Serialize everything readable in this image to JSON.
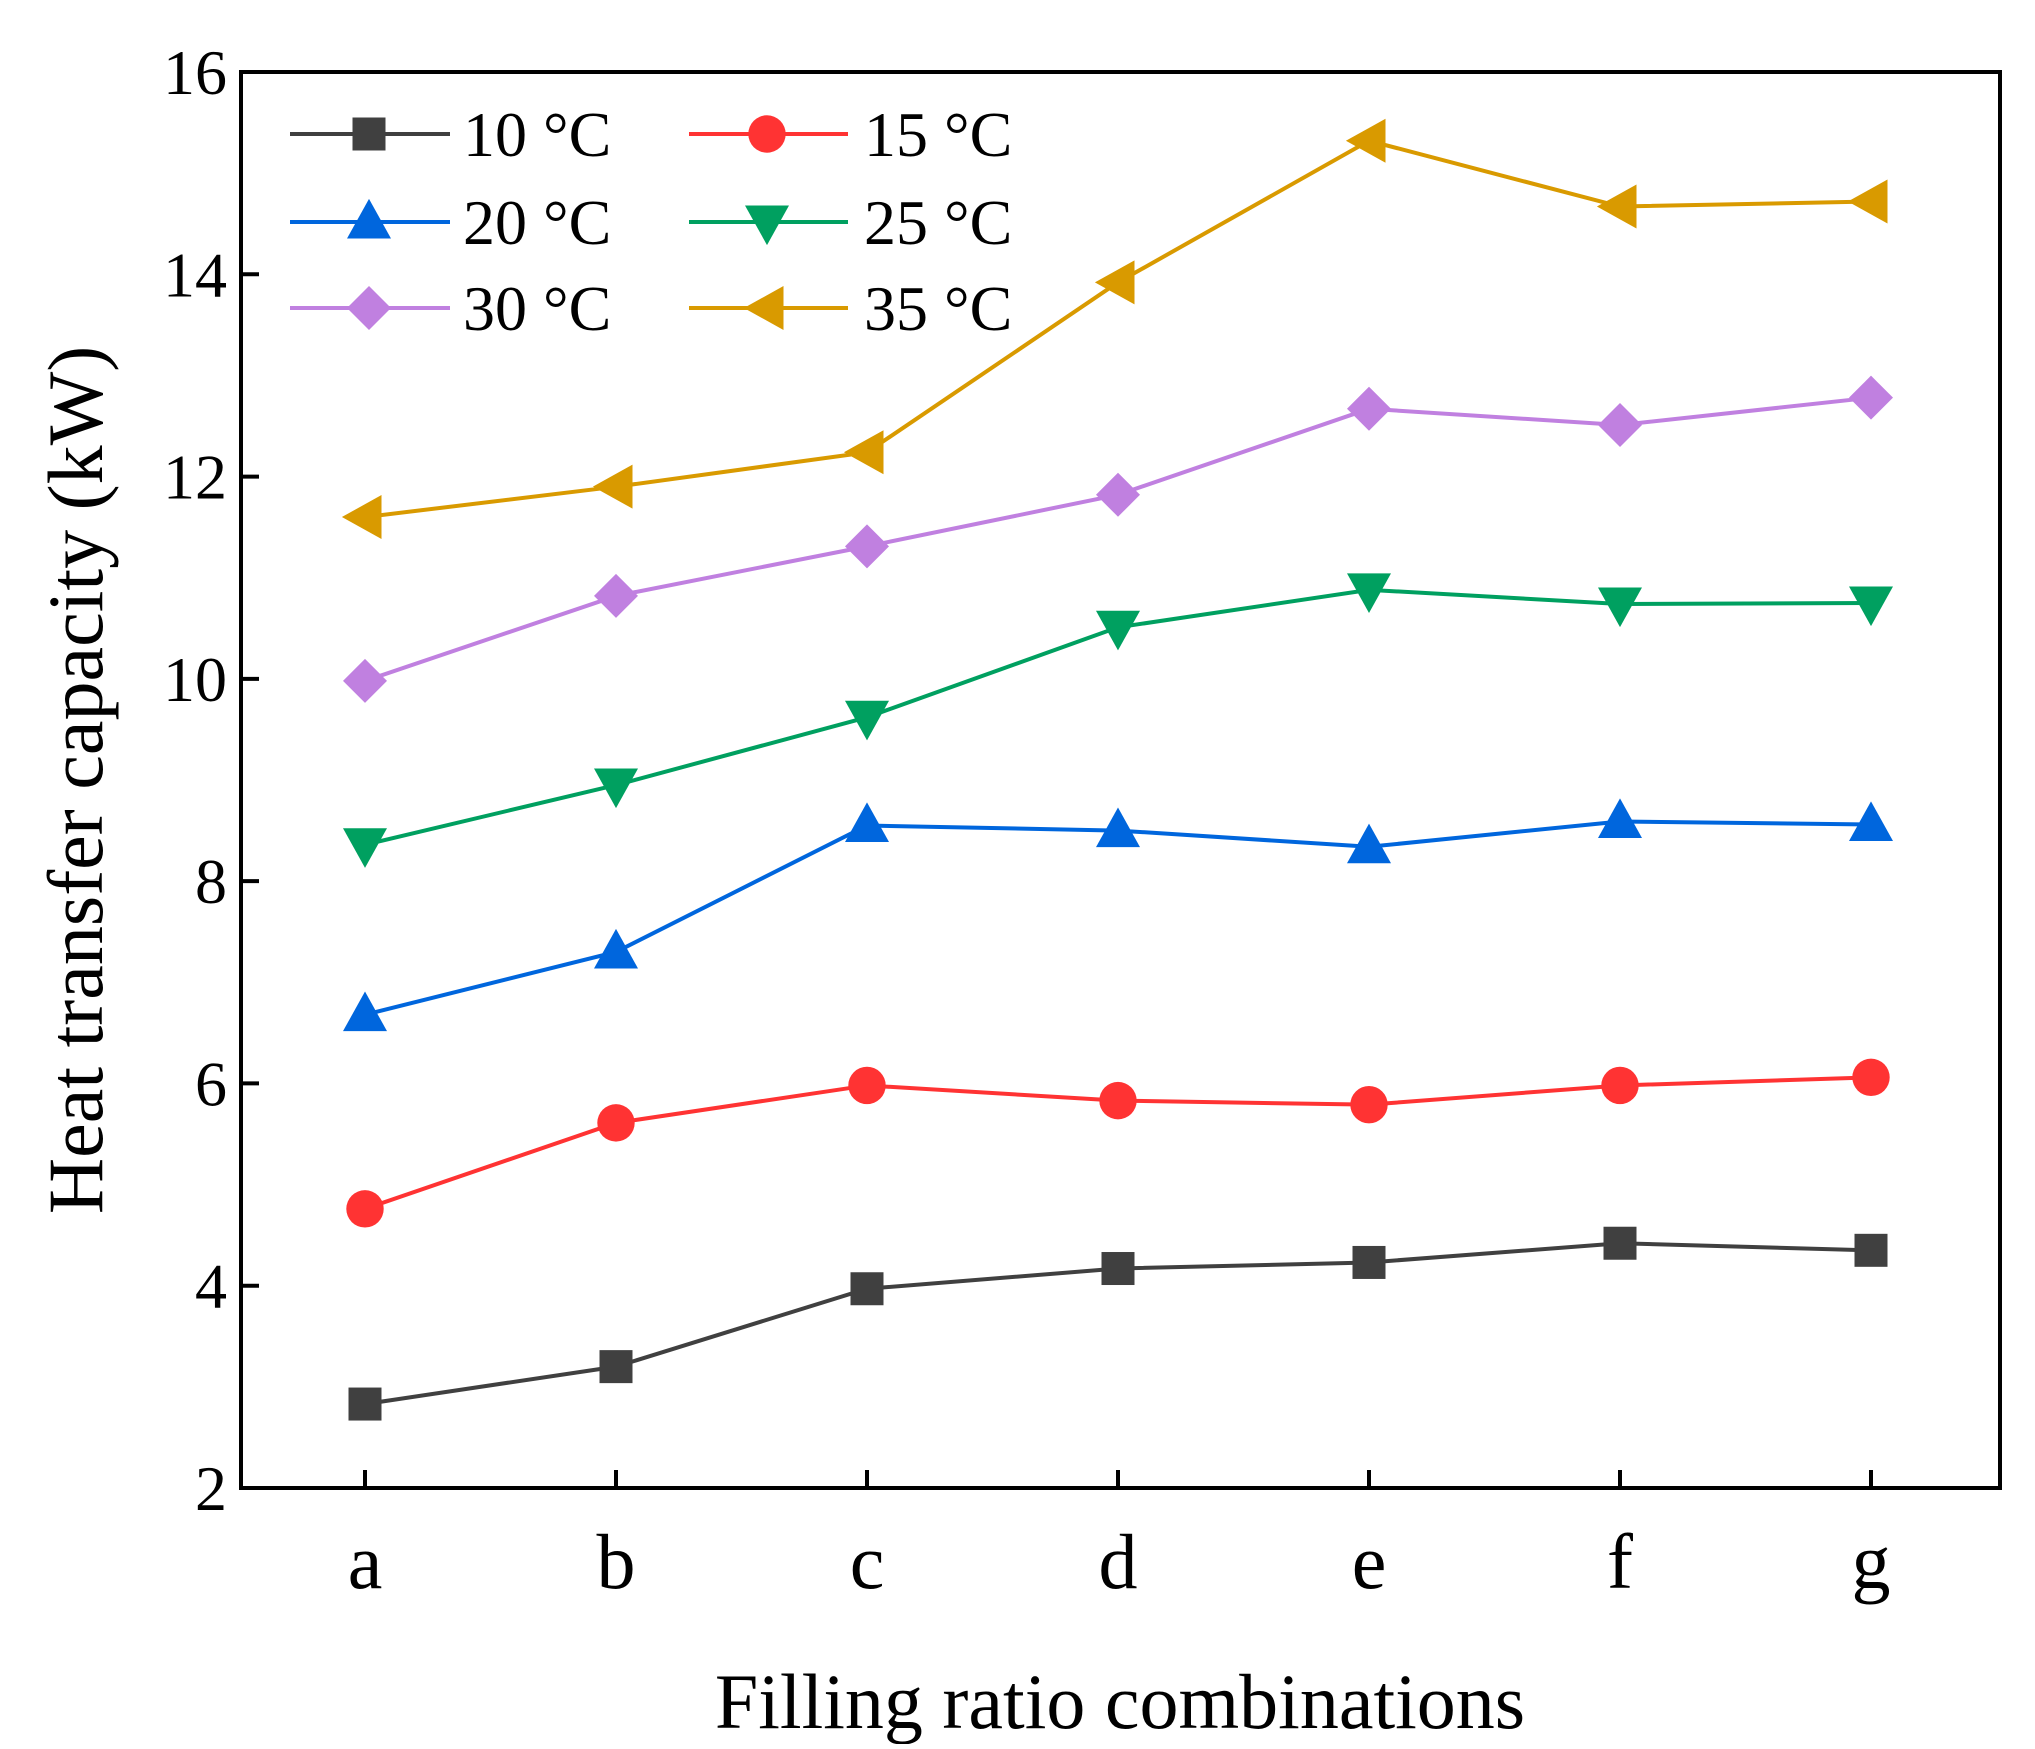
{
  "chart_data": {
    "type": "line",
    "title": "",
    "xlabel": "Filling ratio combinations",
    "ylabel": "Heat transfer capacity (kW)",
    "categories": [
      "a",
      "b",
      "c",
      "d",
      "e",
      "f",
      "g"
    ],
    "ylim": [
      2,
      16
    ],
    "yticks": [
      "2",
      "4",
      "6",
      "8",
      "10",
      "12",
      "14",
      "16"
    ],
    "grid": false,
    "legend_position": "top-left",
    "series": [
      {
        "name": "10 °C",
        "color": "#404040",
        "marker": "square",
        "values": [
          2.83,
          3.2,
          3.97,
          4.17,
          4.23,
          4.42,
          4.35
        ]
      },
      {
        "name": "15 °C",
        "color": "#ff3333",
        "marker": "circle",
        "values": [
          4.76,
          5.61,
          5.98,
          5.83,
          5.79,
          5.98,
          6.06
        ]
      },
      {
        "name": "20 °C",
        "color": "#0066dd",
        "marker": "triangle-up",
        "values": [
          6.68,
          7.3,
          8.55,
          8.5,
          8.34,
          8.59,
          8.56
        ]
      },
      {
        "name": "25 °C",
        "color": "#00a060",
        "marker": "triangle-down",
        "values": [
          8.36,
          8.95,
          9.62,
          10.51,
          10.88,
          10.74,
          10.75
        ]
      },
      {
        "name": "30 °C",
        "color": "#c080e0",
        "marker": "diamond",
        "values": [
          9.98,
          10.82,
          11.31,
          11.82,
          12.67,
          12.51,
          12.78
        ]
      },
      {
        "name": "35 °C",
        "color": "#d99a00",
        "marker": "triangle-left",
        "values": [
          11.6,
          11.9,
          12.24,
          13.92,
          15.32,
          14.67,
          14.72
        ]
      }
    ]
  }
}
